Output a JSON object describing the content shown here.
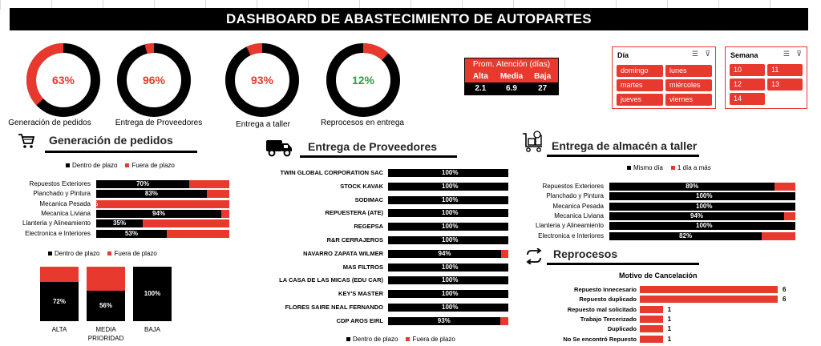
{
  "header": {
    "title": "DASHBOARD DE ABASTECIMIENTO DE AUTOPARTES"
  },
  "colors": {
    "accent": "#e8392f",
    "dark": "#000000",
    "green": "#2ea043"
  },
  "donuts": [
    {
      "pct": "63%",
      "value": 63,
      "label": "Generación de pedidos",
      "color": "#e8392f"
    },
    {
      "pct": "96%",
      "value": 96,
      "label": "Entrega de Proveedores",
      "color": "#e8392f"
    },
    {
      "pct": "93%",
      "value": 93,
      "label": "Entrega a taller",
      "color": "#e8392f"
    },
    {
      "pct": "12%",
      "value": 12,
      "label": "Reprocesos en entrega",
      "color": "#2ea043"
    }
  ],
  "atencion": {
    "title": "Prom. Atención (días)",
    "headers": [
      "Alta",
      "Media",
      "Baja"
    ],
    "values": [
      "2.1",
      "6.9",
      "27"
    ]
  },
  "slicer_dia": {
    "title": "Día",
    "items": [
      "domingo",
      "lunes",
      "martes",
      "miércoles",
      "jueves",
      "viernes"
    ]
  },
  "slicer_semana": {
    "title": "Semana",
    "items": [
      "10",
      "11",
      "12",
      "13",
      "14"
    ]
  },
  "sections": {
    "pedidos": "Generación de pedidos",
    "proveedores": "Entrega de Proveedores",
    "almacen": "Entrega de almacén a taller",
    "reprocesos": "Reprocesos"
  },
  "chart_data": [
    {
      "type": "bar",
      "orientation": "horizontal-stacked",
      "legend": [
        "Dentro de plazo",
        "Fuera de plazo"
      ],
      "categories": [
        "Repuestos Exteriores",
        "Planchado y Pintura",
        "Mecanica Pesada",
        "Mecanica Liviana",
        "Llanteria y Alineamiento",
        "Electronica e Interiores"
      ],
      "values": [
        70,
        83,
        0,
        94,
        35,
        53
      ],
      "labels": [
        "70%",
        "83%",
        "%",
        "94%",
        "35%",
        "53%"
      ]
    },
    {
      "type": "bar",
      "orientation": "vertical-stacked",
      "legend": [
        "Dentro de plazo",
        "Fuera de plazo"
      ],
      "categories": [
        "ALTA",
        "MEDIA",
        "BAJA"
      ],
      "xlabel": "PRIORIDAD",
      "values": [
        72,
        56,
        100
      ],
      "labels": [
        "72%",
        "56%",
        "100%"
      ]
    },
    {
      "type": "bar",
      "orientation": "horizontal-stacked",
      "legend": [
        "Dentro de plazo",
        "Fuera de plazo"
      ],
      "categories": [
        "TWIN GLOBAL CORPORATION SAC",
        "STOCK KAVAK",
        "SODIMAC",
        "REPUESTERA (ATE)",
        "REGEPSA",
        "R&R CERRAJEROS",
        "NAVARRO ZAPATA WILMER",
        "MAS FILTROS",
        "LA CASA DE LAS MICAS (EDU CAR)",
        "KEY'S MASTER",
        "FLORES SAIRE NEAL FERNANDO",
        "CDP AROS EIRL"
      ],
      "values": [
        100,
        100,
        100,
        100,
        100,
        100,
        94,
        100,
        100,
        100,
        100,
        93
      ],
      "labels": [
        "100%",
        "100%",
        "100%",
        "100%",
        "100%",
        "100%",
        "94%",
        "100%",
        "100%",
        "100%",
        "100%",
        "93%"
      ]
    },
    {
      "type": "bar",
      "orientation": "horizontal-stacked",
      "legend": [
        "Mismo día",
        "1 día a más"
      ],
      "categories": [
        "Repuestos Exteriores",
        "Planchado y Pintura",
        "Mecanica Pesada",
        "Mecanica Liviana",
        "Llanteria y Alineamiento",
        "Electronica e Interiores"
      ],
      "values": [
        89,
        100,
        100,
        94,
        100,
        82
      ],
      "labels": [
        "89%",
        "100%",
        "100%",
        "94%",
        "100%",
        "82%"
      ]
    },
    {
      "type": "bar",
      "orientation": "horizontal",
      "title": "Motivo de Cancelación",
      "categories": [
        "Repuesto Innecesario",
        "Repuesto duplicado",
        "Repuesto mal solicitado",
        "Trabajo Tercerizado",
        "Duplicado",
        "No Se encontró Repuesto"
      ],
      "values": [
        6,
        6,
        1,
        1,
        1,
        1
      ]
    }
  ]
}
